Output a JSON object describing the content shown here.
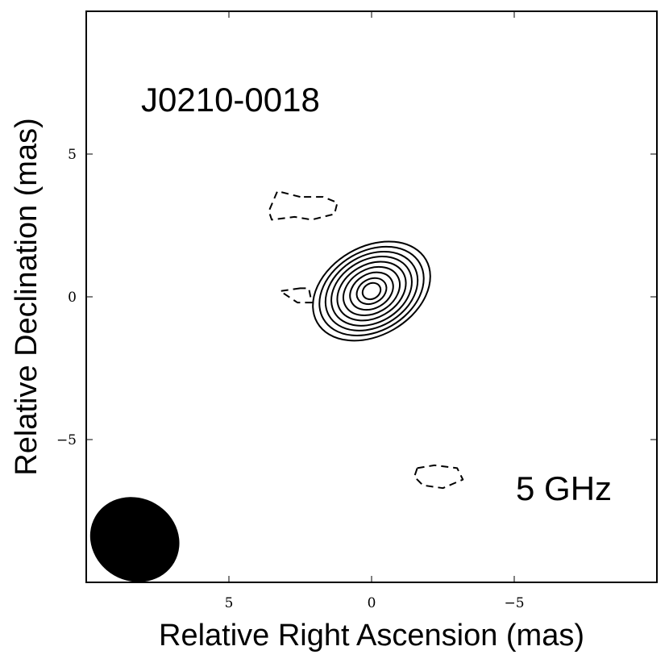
{
  "chart_data": {
    "type": "contour",
    "source_name": "J0210-0018",
    "frequency": "5 GHz",
    "xlabel": "Relative Right Ascension (mas)",
    "ylabel": "Relative Declination (mas)",
    "xlim": [
      10,
      -10
    ],
    "ylim": [
      -10,
      10
    ],
    "x_ticks": [
      5,
      0,
      -5
    ],
    "y_ticks": [
      5,
      0,
      -5
    ],
    "x_tick_labels": [
      "5",
      "0",
      "−5"
    ],
    "y_tick_labels": [
      "5",
      "0",
      "−5"
    ],
    "grid": false,
    "positive_contours": {
      "center": [
        0.0,
        0.2
      ],
      "position_angle_deg": 60,
      "levels": [
        {
          "a": 2.2,
          "b": 1.55
        },
        {
          "a": 1.95,
          "b": 1.4
        },
        {
          "a": 1.72,
          "b": 1.25
        },
        {
          "a": 1.5,
          "b": 1.1
        },
        {
          "a": 1.28,
          "b": 0.93
        },
        {
          "a": 1.05,
          "b": 0.77
        },
        {
          "a": 0.8,
          "b": 0.6
        },
        {
          "a": 0.55,
          "b": 0.42
        },
        {
          "a": 0.33,
          "b": 0.27
        }
      ]
    },
    "negative_contours": [
      {
        "points": [
          [
            2.5,
            3.5
          ],
          [
            3.3,
            3.7
          ],
          [
            3.6,
            3.0
          ],
          [
            3.5,
            2.7
          ],
          [
            2.7,
            2.8
          ],
          [
            2.1,
            2.7
          ],
          [
            1.3,
            2.9
          ],
          [
            1.2,
            3.3
          ],
          [
            1.7,
            3.5
          ]
        ]
      },
      {
        "points": [
          [
            2.5,
            0.3
          ],
          [
            3.2,
            0.2
          ],
          [
            2.6,
            -0.2
          ],
          [
            2.1,
            -0.2
          ],
          [
            2.2,
            0.3
          ]
        ]
      },
      {
        "points": [
          [
            -1.6,
            -6.0
          ],
          [
            -2.2,
            -5.9
          ],
          [
            -3.0,
            -6.0
          ],
          [
            -3.2,
            -6.4
          ],
          [
            -2.5,
            -6.7
          ],
          [
            -1.8,
            -6.6
          ],
          [
            -1.5,
            -6.3
          ]
        ]
      }
    ],
    "beam": {
      "center": [
        8.3,
        -8.5
      ],
      "major": 1.6,
      "minor": 1.45,
      "position_angle_deg": 30
    }
  }
}
